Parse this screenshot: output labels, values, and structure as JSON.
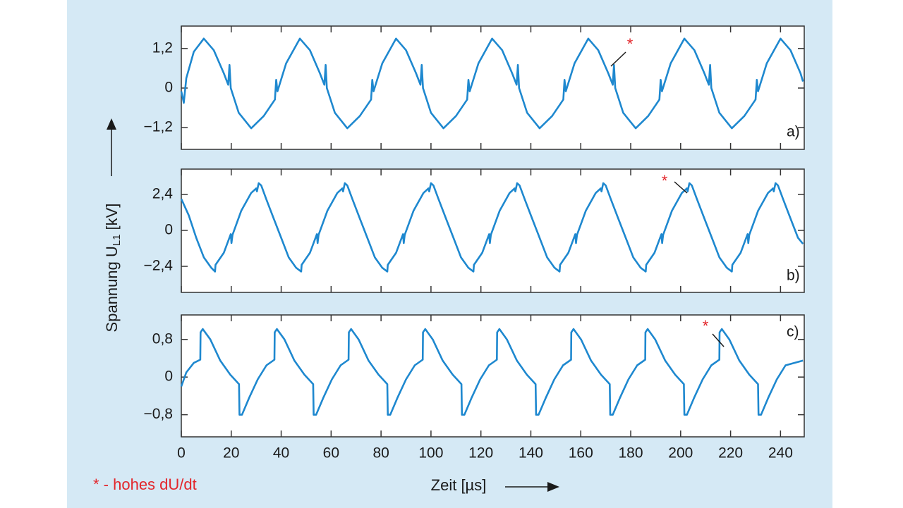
{
  "chart_data": [
    {
      "type": "line",
      "label": "a)",
      "annotation": "*",
      "color": "#1e88cf",
      "xlim": [
        0,
        249.5
      ],
      "xticks": [
        0,
        20,
        40,
        60,
        80,
        100,
        120,
        140,
        160,
        180,
        200,
        220,
        240
      ],
      "ylim": [
        -1.86,
        1.88
      ],
      "yticks": [
        {
          "value": 1.2,
          "label": "1,2"
        },
        0,
        {
          "value": -1.2,
          "label": "−1,2"
        }
      ],
      "x": [
        0,
        1,
        2,
        5,
        9,
        13,
        17,
        18.8,
        19.3,
        19.8,
        23,
        28,
        33,
        37.5,
        38,
        38.5,
        42,
        47.5,
        51.5,
        55.5,
        57.3,
        57.8,
        58.3,
        61.5,
        66.5,
        71.5,
        76,
        76.5,
        77,
        80.5,
        86,
        90,
        94,
        95.8,
        96.3,
        96.8,
        100,
        105,
        110,
        114.5,
        115,
        115.5,
        119,
        124.5,
        128.5,
        132.5,
        134.3,
        134.8,
        135.3,
        138.5,
        143.5,
        148.5,
        153,
        153.5,
        154,
        157.5,
        163,
        167,
        171,
        172.8,
        173.3,
        173.8,
        177,
        182,
        187,
        191.5,
        192,
        192.5,
        196,
        201.5,
        205.5,
        209.5,
        211.3,
        211.8,
        212.3,
        215.5,
        220.5,
        225.5,
        230,
        230.5,
        231,
        234.5,
        240,
        244,
        248,
        249
      ],
      "values": [
        -0.1,
        -0.45,
        0.3,
        1.1,
        1.5,
        1.15,
        0.45,
        0.1,
        0.7,
        0.0,
        -0.75,
        -1.22,
        -0.85,
        -0.35,
        0.25,
        -0.1,
        0.75,
        1.5,
        1.15,
        0.45,
        0.1,
        0.7,
        0.0,
        -0.75,
        -1.22,
        -0.85,
        -0.35,
        0.25,
        -0.1,
        0.75,
        1.5,
        1.15,
        0.45,
        0.1,
        0.7,
        0.0,
        -0.75,
        -1.22,
        -0.85,
        -0.35,
        0.25,
        -0.1,
        0.75,
        1.5,
        1.15,
        0.45,
        0.1,
        0.7,
        0.0,
        -0.75,
        -1.22,
        -0.85,
        -0.35,
        0.25,
        -0.1,
        0.75,
        1.5,
        1.15,
        0.45,
        0.1,
        0.7,
        0.0,
        -0.75,
        -1.22,
        -0.85,
        -0.35,
        0.25,
        -0.1,
        0.75,
        1.5,
        1.15,
        0.45,
        0.1,
        0.7,
        0.0,
        -0.75,
        -1.22,
        -0.85,
        -0.35,
        0.25,
        -0.1,
        0.75,
        1.5,
        1.15,
        0.45,
        0.2
      ]
    },
    {
      "type": "line",
      "label": "b)",
      "annotation": "*",
      "color": "#1e88cf",
      "xlim": [
        0,
        249.5
      ],
      "xticks": [
        0,
        20,
        40,
        60,
        80,
        100,
        120,
        140,
        160,
        180,
        200,
        220,
        240
      ],
      "ylim": [
        -4.14,
        4.09
      ],
      "yticks": [
        {
          "value": 2.4,
          "label": "2,4"
        },
        0,
        {
          "value": -2.4,
          "label": "−2,4"
        }
      ],
      "x": [
        0,
        3,
        6,
        9,
        12,
        13.5,
        13.7,
        17,
        19.8,
        20.1,
        20.5,
        24,
        28,
        30,
        30.3,
        31,
        32,
        34,
        37,
        40,
        43,
        46,
        48,
        48.2,
        51.5,
        54.3,
        54.6,
        55,
        58.5,
        62.5,
        64.5,
        64.8,
        65.5,
        66.5,
        68.5,
        71.5,
        74.5,
        77.5,
        80.5,
        82.5,
        82.7,
        86,
        88.8,
        89.1,
        89.5,
        93,
        97,
        99,
        99.3,
        100,
        101,
        103,
        106,
        109,
        112,
        115,
        117,
        117.2,
        120.5,
        123.3,
        123.6,
        124,
        127.5,
        131.5,
        133.5,
        133.8,
        134.5,
        135.5,
        137.5,
        140.5,
        143.5,
        146.5,
        149.5,
        151.5,
        151.7,
        155,
        157.8,
        158.1,
        158.5,
        162,
        166,
        168,
        168.3,
        169,
        170,
        172,
        175,
        178,
        181,
        184,
        186,
        186.2,
        189.5,
        192.3,
        192.6,
        193,
        196.5,
        200.5,
        202.5,
        202.8,
        203.5,
        204.5,
        206.5,
        209.5,
        212.5,
        215.5,
        218.5,
        220.5,
        220.7,
        224,
        226.8,
        227.1,
        227.5,
        231,
        235,
        237,
        237.3,
        238,
        239,
        241,
        244,
        247,
        249
      ],
      "values": [
        2.1,
        1.0,
        -0.5,
        -1.8,
        -2.5,
        -2.75,
        -2.3,
        -1.5,
        -0.25,
        -0.85,
        -0.3,
        1.3,
        2.5,
        2.8,
        2.6,
        3.15,
        3.0,
        2.1,
        0.8,
        -0.5,
        -1.8,
        -2.5,
        -2.75,
        -2.3,
        -1.5,
        -0.25,
        -0.85,
        -0.3,
        1.3,
        2.5,
        2.8,
        2.6,
        3.15,
        3.0,
        2.1,
        0.8,
        -0.5,
        -1.8,
        -2.5,
        -2.75,
        -2.3,
        -1.5,
        -0.25,
        -0.85,
        -0.3,
        1.3,
        2.5,
        2.8,
        2.6,
        3.15,
        3.0,
        2.1,
        0.8,
        -0.5,
        -1.8,
        -2.5,
        -2.75,
        -2.3,
        -1.5,
        -0.25,
        -0.85,
        -0.3,
        1.3,
        2.5,
        2.8,
        2.6,
        3.15,
        3.0,
        2.1,
        0.8,
        -0.5,
        -1.8,
        -2.5,
        -2.75,
        -2.3,
        -1.5,
        -0.25,
        -0.85,
        -0.3,
        1.3,
        2.5,
        2.8,
        2.6,
        3.15,
        3.0,
        2.1,
        0.8,
        -0.5,
        -1.8,
        -2.5,
        -2.75,
        -2.3,
        -1.5,
        -0.25,
        -0.85,
        -0.3,
        1.3,
        2.5,
        2.8,
        2.6,
        3.15,
        3.0,
        2.1,
        0.8,
        -0.5,
        -1.8,
        -2.5,
        -2.75,
        -2.3,
        -1.5,
        -0.25,
        -0.85,
        -0.3,
        1.3,
        2.5,
        2.8,
        2.6,
        3.15,
        3.0,
        2.1,
        0.8,
        -0.5,
        -0.9
      ]
    },
    {
      "type": "line",
      "label": "c)",
      "annotation": "*",
      "color": "#1e88cf",
      "xlim": [
        0,
        249.5
      ],
      "xticks": [
        0,
        20,
        40,
        60,
        80,
        100,
        120,
        140,
        160,
        180,
        200,
        220,
        240
      ],
      "ylim": [
        -1.27,
        1.32
      ],
      "yticks": [
        {
          "value": 0.8,
          "label": "0,8"
        },
        0,
        {
          "value": -0.8,
          "label": "−0,8"
        }
      ],
      "x": [
        0,
        2,
        5,
        7.6,
        7.7,
        8.6,
        11.6,
        15.6,
        19.6,
        23.1,
        23.3,
        24.3,
        27.1,
        30.6,
        34.1,
        37.3,
        37.4,
        38.3,
        41.3,
        45.3,
        49.3,
        52.8,
        53,
        54,
        56.8,
        60.3,
        63.8,
        67,
        67.1,
        68,
        71,
        75,
        79,
        82.5,
        82.7,
        83.7,
        86.5,
        90,
        93.5,
        96.7,
        96.8,
        97.7,
        100.7,
        104.7,
        108.7,
        112.2,
        112.4,
        113.4,
        116.2,
        119.7,
        123.2,
        126.4,
        126.5,
        127.4,
        130.4,
        134.4,
        138.4,
        141.9,
        142.1,
        143.1,
        145.9,
        149.4,
        152.9,
        156.1,
        156.2,
        157.1,
        160.1,
        164.1,
        168.1,
        171.6,
        171.8,
        172.8,
        175.6,
        179.1,
        182.6,
        185.8,
        185.9,
        186.8,
        189.8,
        193.8,
        197.8,
        201.3,
        201.5,
        202.5,
        205.3,
        208.8,
        212.3,
        215.5,
        215.6,
        216.5,
        219.5,
        223.5,
        227.5,
        231,
        231.2,
        232.2,
        235,
        238.5,
        242,
        249
      ],
      "values": [
        -0.2,
        0.1,
        0.3,
        0.37,
        0.95,
        1.02,
        0.8,
        0.35,
        0.05,
        -0.15,
        -0.8,
        -0.8,
        -0.45,
        -0.05,
        0.25,
        0.37,
        0.95,
        1.02,
        0.8,
        0.35,
        0.05,
        -0.15,
        -0.8,
        -0.8,
        -0.45,
        -0.05,
        0.25,
        0.37,
        0.95,
        1.02,
        0.8,
        0.35,
        0.05,
        -0.15,
        -0.8,
        -0.8,
        -0.45,
        -0.05,
        0.25,
        0.37,
        0.95,
        1.02,
        0.8,
        0.35,
        0.05,
        -0.15,
        -0.8,
        -0.8,
        -0.45,
        -0.05,
        0.25,
        0.37,
        0.95,
        1.02,
        0.8,
        0.35,
        0.05,
        -0.15,
        -0.8,
        -0.8,
        -0.45,
        -0.05,
        0.25,
        0.37,
        0.95,
        1.02,
        0.8,
        0.35,
        0.05,
        -0.15,
        -0.8,
        -0.8,
        -0.45,
        -0.05,
        0.25,
        0.37,
        0.95,
        1.02,
        0.8,
        0.35,
        0.05,
        -0.15,
        -0.8,
        -0.8,
        -0.45,
        -0.05,
        0.25,
        0.37,
        0.95,
        1.02,
        0.8,
        0.35,
        0.05,
        -0.15,
        -0.8,
        -0.8,
        -0.45,
        -0.05,
        0.25,
        0.35
      ]
    }
  ],
  "y_label": "Spannung U",
  "y_label_sub": "L1",
  "y_label_unit": "[kV]",
  "x_label": "Zeit [µs]",
  "footnote": "* - hohes dU/dt"
}
